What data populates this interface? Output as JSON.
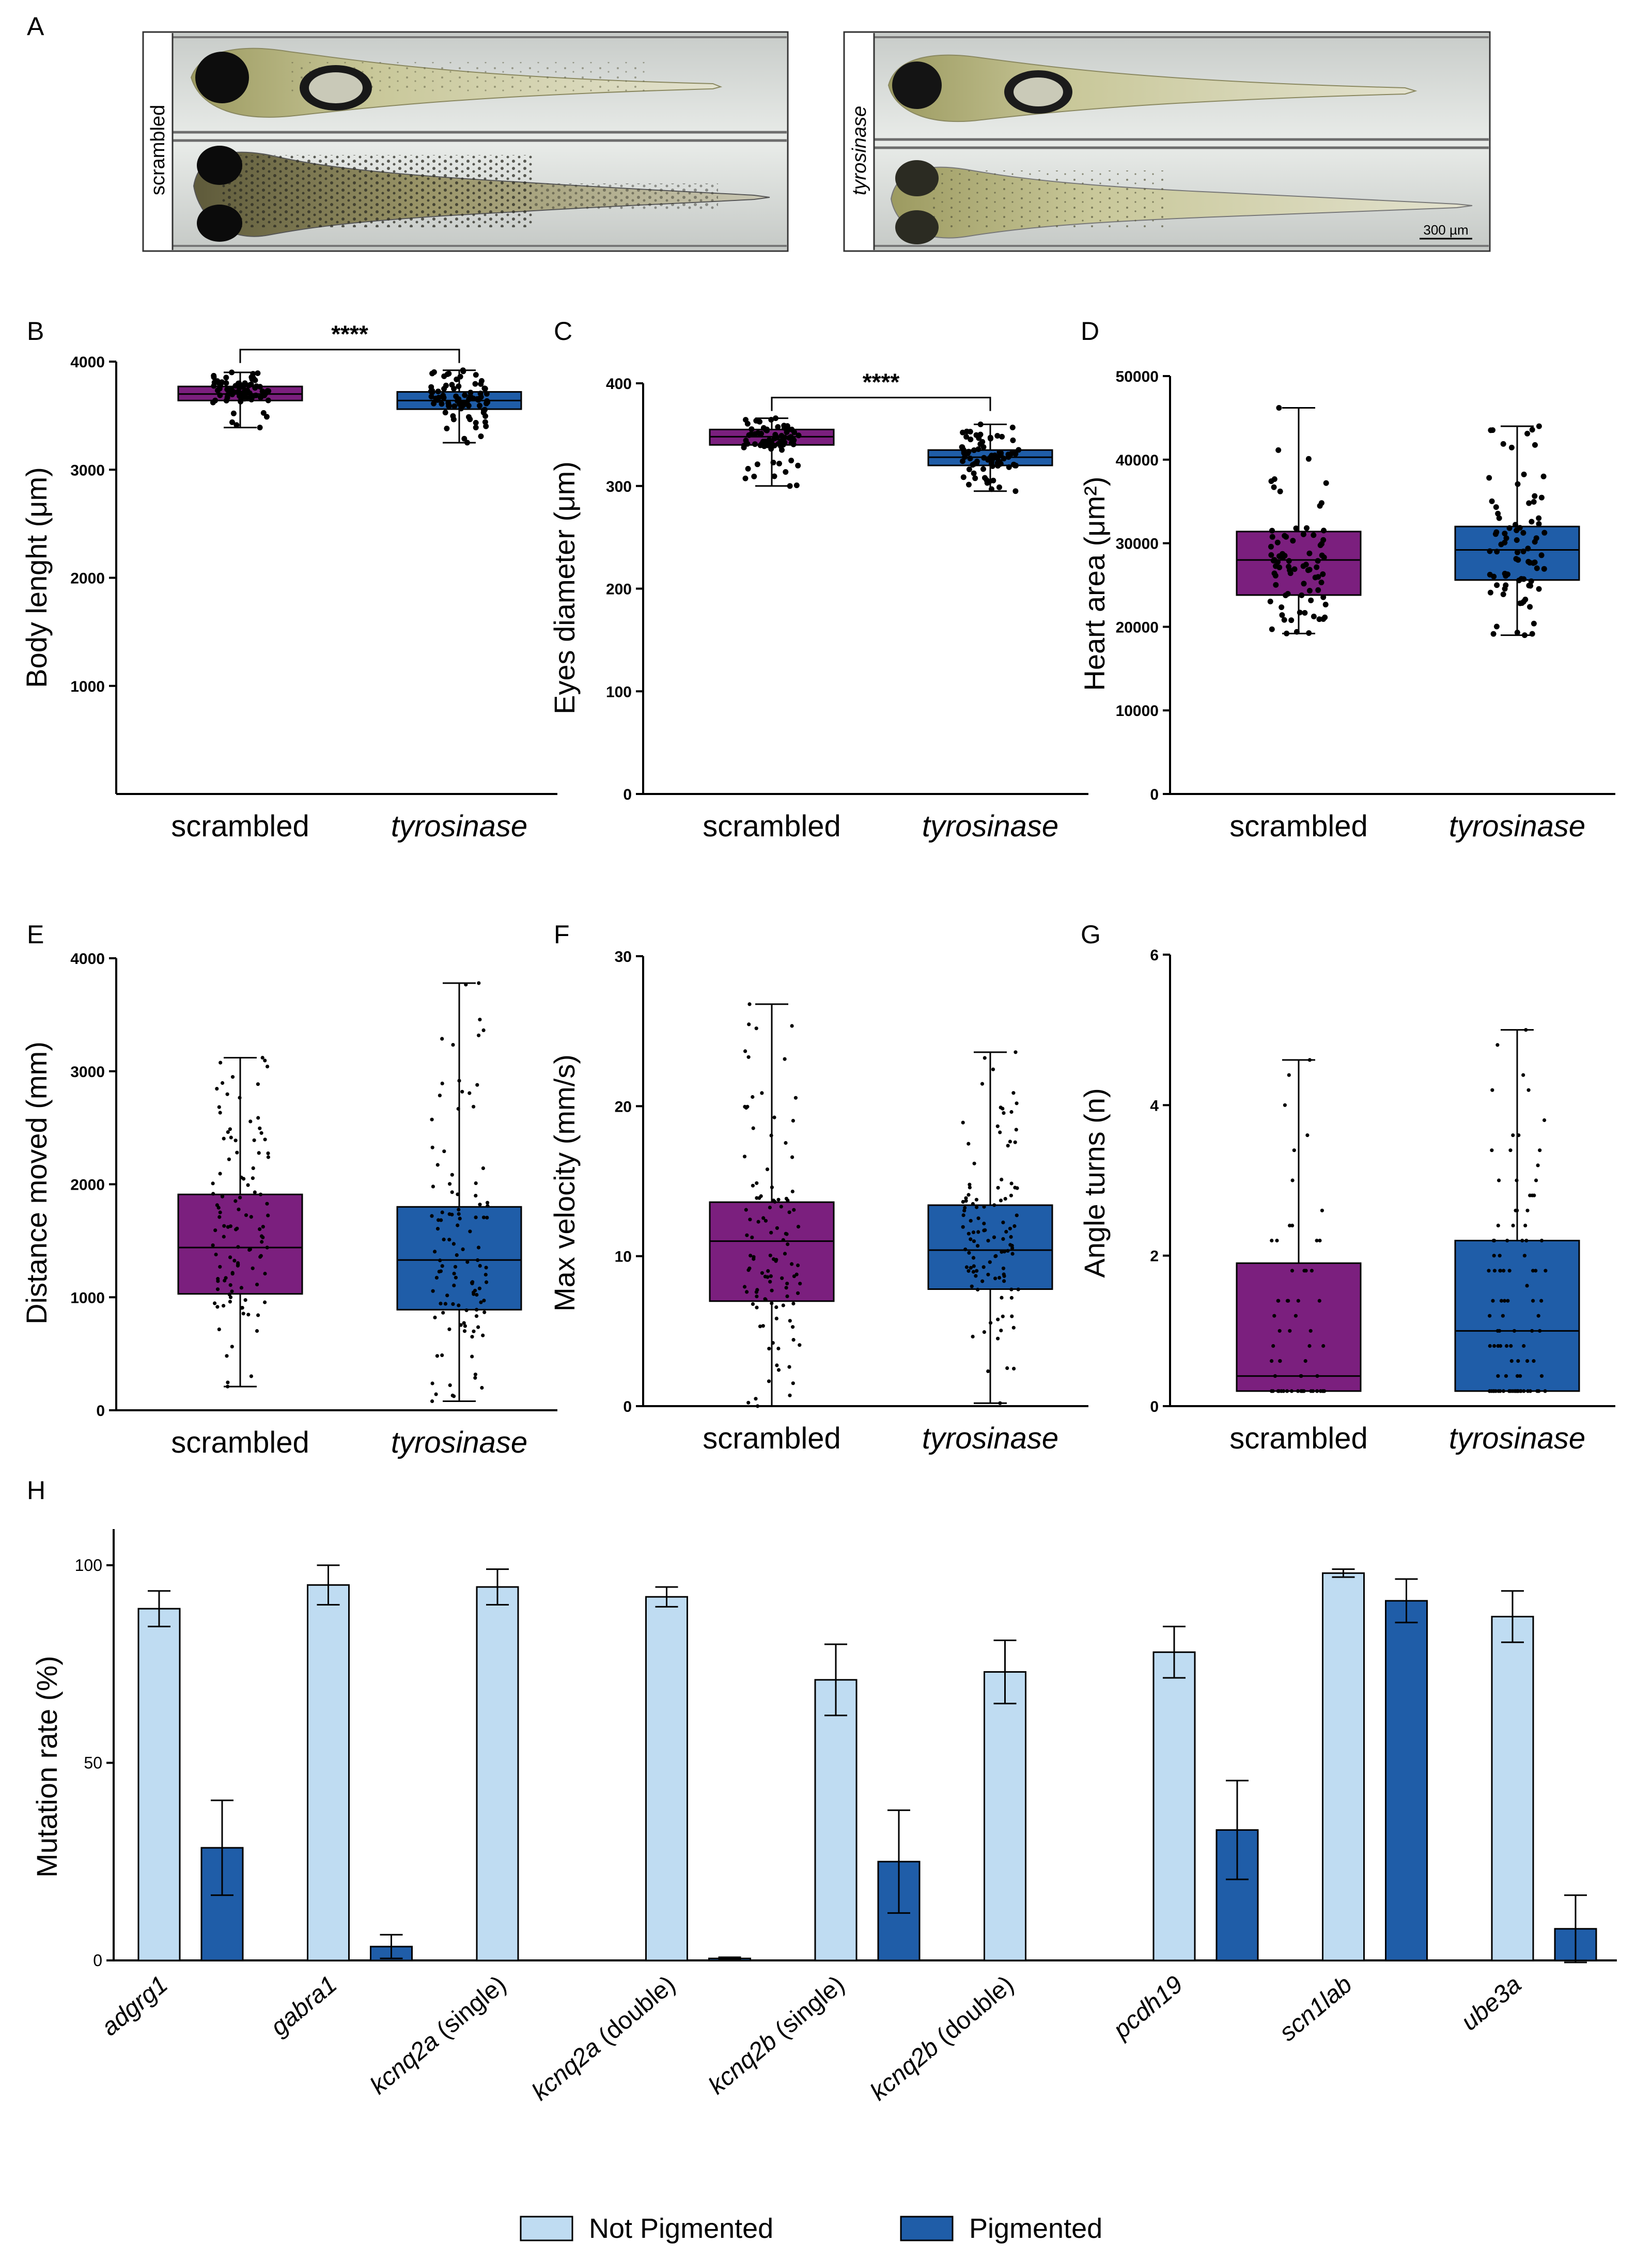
{
  "colors": {
    "scrambled": "#7B1F7E",
    "tyrosinase": "#1F5DA8",
    "not_pigmented": "#BFDCF2",
    "pigmented": "#1F5DA8"
  },
  "panel_a": {
    "label": "A",
    "left_group": "scrambled",
    "right_group": "tyrosinase",
    "scale_bar": "300 µm"
  },
  "chart_data": [
    {
      "panel": "B",
      "type": "box",
      "ylabel": "Body lenght (μm)",
      "ylim": [
        0,
        4000
      ],
      "yticks": [
        1000,
        2000,
        3000,
        4000
      ],
      "tick_labels": [
        "1000",
        "2000",
        "3000",
        "4000"
      ],
      "significance": "****",
      "categories": [
        "scrambled",
        "tyrosinase"
      ],
      "series": [
        {
          "name": "scrambled",
          "min": 3390,
          "q1": 3640,
          "median": 3700,
          "q3": 3770,
          "max": 3900,
          "n": 80
        },
        {
          "name": "tyrosinase",
          "min": 3250,
          "q1": 3560,
          "median": 3640,
          "q3": 3720,
          "max": 3920,
          "n": 80
        }
      ]
    },
    {
      "panel": "C",
      "type": "box",
      "ylabel": "Eyes diameter (μm)",
      "ylim": [
        0,
        400
      ],
      "yticks": [
        0,
        100,
        200,
        300,
        400
      ],
      "tick_labels": [
        "0",
        "100",
        "200",
        "300",
        "400"
      ],
      "significance": "****",
      "categories": [
        "scrambled",
        "tyrosinase"
      ],
      "series": [
        {
          "name": "scrambled",
          "min": 300,
          "q1": 340,
          "median": 348,
          "q3": 355,
          "max": 366,
          "n": 80
        },
        {
          "name": "tyrosinase",
          "min": 295,
          "q1": 320,
          "median": 328,
          "q3": 335,
          "max": 360,
          "n": 80
        }
      ]
    },
    {
      "panel": "D",
      "type": "box",
      "ylabel": "Heart area (μm²)",
      "ylim": [
        0,
        50000
      ],
      "yticks": [
        0,
        10000,
        20000,
        30000,
        40000,
        50000
      ],
      "tick_labels": [
        "0",
        "10000",
        "20000",
        "30000",
        "40000",
        "50000"
      ],
      "significance": "",
      "categories": [
        "scrambled",
        "tyrosinase"
      ],
      "series": [
        {
          "name": "scrambled",
          "min": 19200,
          "q1": 23800,
          "median": 28000,
          "q3": 31400,
          "max": 46200,
          "n": 80
        },
        {
          "name": "tyrosinase",
          "min": 19000,
          "q1": 25600,
          "median": 29200,
          "q3": 32000,
          "max": 44000,
          "n": 80
        }
      ]
    },
    {
      "panel": "E",
      "type": "box",
      "ylabel": "Distance moved (mm)",
      "ylim": [
        0,
        4000
      ],
      "yticks": [
        0,
        1000,
        2000,
        3000,
        4000
      ],
      "tick_labels": [
        "0",
        "1000",
        "2000",
        "3000",
        "4000"
      ],
      "significance": "",
      "categories": [
        "scrambled",
        "tyrosinase"
      ],
      "series": [
        {
          "name": "scrambled",
          "min": 210,
          "q1": 1030,
          "median": 1440,
          "q3": 1910,
          "max": 3120,
          "n": 110
        },
        {
          "name": "tyrosinase",
          "min": 80,
          "q1": 890,
          "median": 1330,
          "q3": 1800,
          "max": 3780,
          "n": 110
        }
      ]
    },
    {
      "panel": "F",
      "type": "box",
      "ylabel": "Max velocity (mm/s)",
      "ylim": [
        0,
        30
      ],
      "yticks": [
        0,
        10,
        20,
        30
      ],
      "tick_labels": [
        "0",
        "10",
        "20",
        "30"
      ],
      "significance": "",
      "categories": [
        "scrambled",
        "tyrosinase"
      ],
      "series": [
        {
          "name": "scrambled",
          "min": 0,
          "q1": 7.0,
          "median": 11.0,
          "q3": 13.6,
          "max": 26.8,
          "n": 110
        },
        {
          "name": "tyrosinase",
          "min": 0.2,
          "q1": 7.8,
          "median": 10.4,
          "q3": 13.4,
          "max": 23.6,
          "n": 110
        }
      ]
    },
    {
      "panel": "G",
      "type": "box",
      "ylabel": "Angle turns (n)",
      "ylim": [
        0,
        6
      ],
      "yticks": [
        0,
        2,
        4,
        6
      ],
      "tick_labels": [
        "0",
        "2",
        "4",
        "6"
      ],
      "significance": "",
      "categories": [
        "scrambled",
        "tyrosinase"
      ],
      "series": [
        {
          "name": "scrambled",
          "min": 0.2,
          "q1": 0.2,
          "median": 0.4,
          "q3": 1.9,
          "max": 4.6,
          "n": 60
        },
        {
          "name": "tyrosinase",
          "min": 0.2,
          "q1": 0.2,
          "median": 1.0,
          "q3": 2.2,
          "max": 5.0,
          "n": 100
        }
      ]
    },
    {
      "panel": "H",
      "type": "bar",
      "ylabel": "Mutation rate (%)",
      "ylim": [
        0,
        100
      ],
      "yticks": [
        0,
        50,
        100
      ],
      "tick_labels": [
        "0",
        "50",
        "100"
      ],
      "categories": [
        {
          "italic": "adgrg1",
          "suffix": ""
        },
        {
          "italic": "gabra1",
          "suffix": ""
        },
        {
          "italic": "kcnq2a",
          "suffix": " (single)"
        },
        {
          "italic": "kcnq2a",
          "suffix": " (double)"
        },
        {
          "italic": "kcnq2b",
          "suffix": " (single)"
        },
        {
          "italic": "kcnq2b",
          "suffix": " (double)"
        },
        {
          "italic": "pcdh19",
          "suffix": ""
        },
        {
          "italic": "scn1lab",
          "suffix": ""
        },
        {
          "italic": "ube3a",
          "suffix": ""
        }
      ],
      "series": [
        {
          "name": "Not Pigmented",
          "values": [
            89,
            95,
            94.5,
            92,
            71,
            73,
            78,
            98,
            87
          ],
          "errors": [
            4.5,
            5,
            4.5,
            2.5,
            9,
            8,
            6.5,
            1,
            6.5
          ]
        },
        {
          "name": "Pigmented",
          "values": [
            28.5,
            3.5,
            null,
            0.5,
            25,
            null,
            33,
            91,
            8
          ],
          "errors": [
            12,
            3,
            null,
            0.3,
            13,
            null,
            12.5,
            5.5,
            8.5
          ]
        }
      ],
      "legend": [
        "Not Pigmented",
        "Pigmented"
      ],
      "legend_position": "bottom-center"
    }
  ]
}
